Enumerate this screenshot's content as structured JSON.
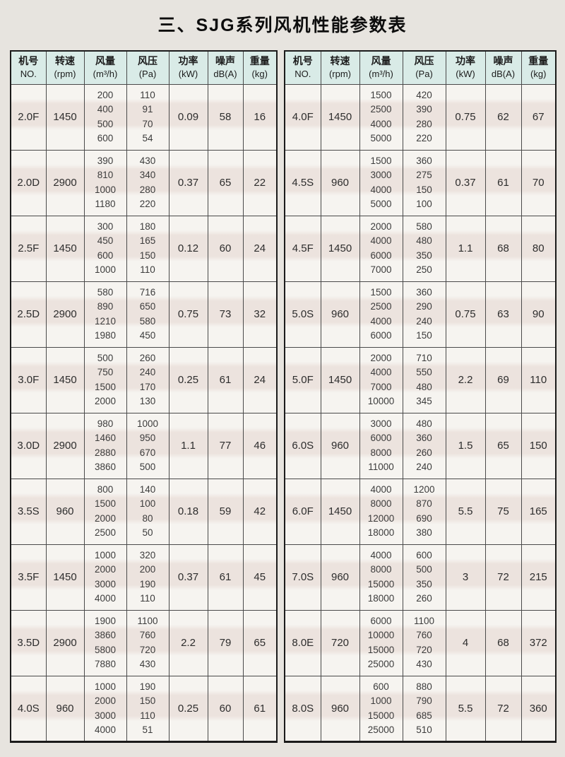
{
  "title": "三、SJG系列风机性能参数表",
  "header": {
    "model": {
      "l1": "机号",
      "l2": "NO."
    },
    "speed": {
      "l1": "转速",
      "l2": "(rpm)"
    },
    "flow": {
      "l1": "风量",
      "l2": "(m³/h)"
    },
    "pressure": {
      "l1": "风压",
      "l2": "(Pa)"
    },
    "power": {
      "l1": "功率",
      "l2": "(kW)"
    },
    "noise": {
      "l1": "噪声",
      "l2": "dB(A)"
    },
    "weight": {
      "l1": "重量",
      "l2": "(kg)"
    }
  },
  "columns_order": [
    "model",
    "speed",
    "flow",
    "pressure",
    "power",
    "noise",
    "weight"
  ],
  "left_table": {
    "rows": [
      {
        "model": "2.0F",
        "speed": "1450",
        "flow": [
          "200",
          "400",
          "500",
          "600"
        ],
        "pressure": [
          "110",
          "91",
          "70",
          "54"
        ],
        "power": "0.09",
        "noise": "58",
        "weight": "16"
      },
      {
        "model": "2.0D",
        "speed": "2900",
        "flow": [
          "390",
          "810",
          "1000",
          "1180"
        ],
        "pressure": [
          "430",
          "340",
          "280",
          "220"
        ],
        "power": "0.37",
        "noise": "65",
        "weight": "22"
      },
      {
        "model": "2.5F",
        "speed": "1450",
        "flow": [
          "300",
          "450",
          "600",
          "1000"
        ],
        "pressure": [
          "180",
          "165",
          "150",
          "110"
        ],
        "power": "0.12",
        "noise": "60",
        "weight": "24"
      },
      {
        "model": "2.5D",
        "speed": "2900",
        "flow": [
          "580",
          "890",
          "1210",
          "1980"
        ],
        "pressure": [
          "716",
          "650",
          "580",
          "450"
        ],
        "power": "0.75",
        "noise": "73",
        "weight": "32"
      },
      {
        "model": "3.0F",
        "speed": "1450",
        "flow": [
          "500",
          "750",
          "1500",
          "2000"
        ],
        "pressure": [
          "260",
          "240",
          "170",
          "130"
        ],
        "power": "0.25",
        "noise": "61",
        "weight": "24"
      },
      {
        "model": "3.0D",
        "speed": "2900",
        "flow": [
          "980",
          "1460",
          "2880",
          "3860"
        ],
        "pressure": [
          "1000",
          "950",
          "670",
          "500"
        ],
        "power": "1.1",
        "noise": "77",
        "weight": "46"
      },
      {
        "model": "3.5S",
        "speed": "960",
        "flow": [
          "800",
          "1500",
          "2000",
          "2500"
        ],
        "pressure": [
          "140",
          "100",
          "80",
          "50"
        ],
        "power": "0.18",
        "noise": "59",
        "weight": "42"
      },
      {
        "model": "3.5F",
        "speed": "1450",
        "flow": [
          "1000",
          "2000",
          "3000",
          "4000"
        ],
        "pressure": [
          "320",
          "200",
          "190",
          "110"
        ],
        "power": "0.37",
        "noise": "61",
        "weight": "45"
      },
      {
        "model": "3.5D",
        "speed": "2900",
        "flow": [
          "1900",
          "3860",
          "5800",
          "7880"
        ],
        "pressure": [
          "1100",
          "760",
          "720",
          "430"
        ],
        "power": "2.2",
        "noise": "79",
        "weight": "65"
      },
      {
        "model": "4.0S",
        "speed": "960",
        "flow": [
          "1000",
          "2000",
          "3000",
          "4000"
        ],
        "pressure": [
          "190",
          "150",
          "110",
          "51"
        ],
        "power": "0.25",
        "noise": "60",
        "weight": "61"
      }
    ]
  },
  "right_table": {
    "rows": [
      {
        "model": "4.0F",
        "speed": "1450",
        "flow": [
          "1500",
          "2500",
          "4000",
          "5000"
        ],
        "pressure": [
          "420",
          "390",
          "280",
          "220"
        ],
        "power": "0.75",
        "noise": "62",
        "weight": "67"
      },
      {
        "model": "4.5S",
        "speed": "960",
        "flow": [
          "1500",
          "3000",
          "4000",
          "5000"
        ],
        "pressure": [
          "360",
          "275",
          "150",
          "100"
        ],
        "power": "0.37",
        "noise": "61",
        "weight": "70"
      },
      {
        "model": "4.5F",
        "speed": "1450",
        "flow": [
          "2000",
          "4000",
          "6000",
          "7000"
        ],
        "pressure": [
          "580",
          "480",
          "350",
          "250"
        ],
        "power": "1.1",
        "noise": "68",
        "weight": "80"
      },
      {
        "model": "5.0S",
        "speed": "960",
        "flow": [
          "1500",
          "2500",
          "4000",
          "6000"
        ],
        "pressure": [
          "360",
          "290",
          "240",
          "150"
        ],
        "power": "0.75",
        "noise": "63",
        "weight": "90"
      },
      {
        "model": "5.0F",
        "speed": "1450",
        "flow": [
          "2000",
          "4000",
          "7000",
          "10000"
        ],
        "pressure": [
          "710",
          "550",
          "480",
          "345"
        ],
        "power": "2.2",
        "noise": "69",
        "weight": "110"
      },
      {
        "model": "6.0S",
        "speed": "960",
        "flow": [
          "3000",
          "6000",
          "8000",
          "11000"
        ],
        "pressure": [
          "480",
          "360",
          "260",
          "240"
        ],
        "power": "1.5",
        "noise": "65",
        "weight": "150"
      },
      {
        "model": "6.0F",
        "speed": "1450",
        "flow": [
          "4000",
          "8000",
          "12000",
          "18000"
        ],
        "pressure": [
          "1200",
          "870",
          "690",
          "380"
        ],
        "power": "5.5",
        "noise": "75",
        "weight": "165"
      },
      {
        "model": "7.0S",
        "speed": "960",
        "flow": [
          "4000",
          "8000",
          "15000",
          "18000"
        ],
        "pressure": [
          "600",
          "500",
          "350",
          "260"
        ],
        "power": "3",
        "noise": "72",
        "weight": "215"
      },
      {
        "model": "8.0E",
        "speed": "720",
        "flow": [
          "6000",
          "10000",
          "15000",
          "25000"
        ],
        "pressure": [
          "1100",
          "760",
          "720",
          "430"
        ],
        "power": "4",
        "noise": "68",
        "weight": "372"
      },
      {
        "model": "8.0S",
        "speed": "960",
        "flow": [
          "600",
          "1000",
          "15000",
          "25000"
        ],
        "pressure": [
          "880",
          "790",
          "685",
          "510"
        ],
        "power": "5.5",
        "noise": "72",
        "weight": "360"
      }
    ]
  },
  "colors": {
    "page_bg": "#e7e4df",
    "table_bg": "#f6f4f0",
    "header_bg": "#d9ebe7",
    "border": "#1b1b1b",
    "scan_band": "#e7dad4"
  }
}
